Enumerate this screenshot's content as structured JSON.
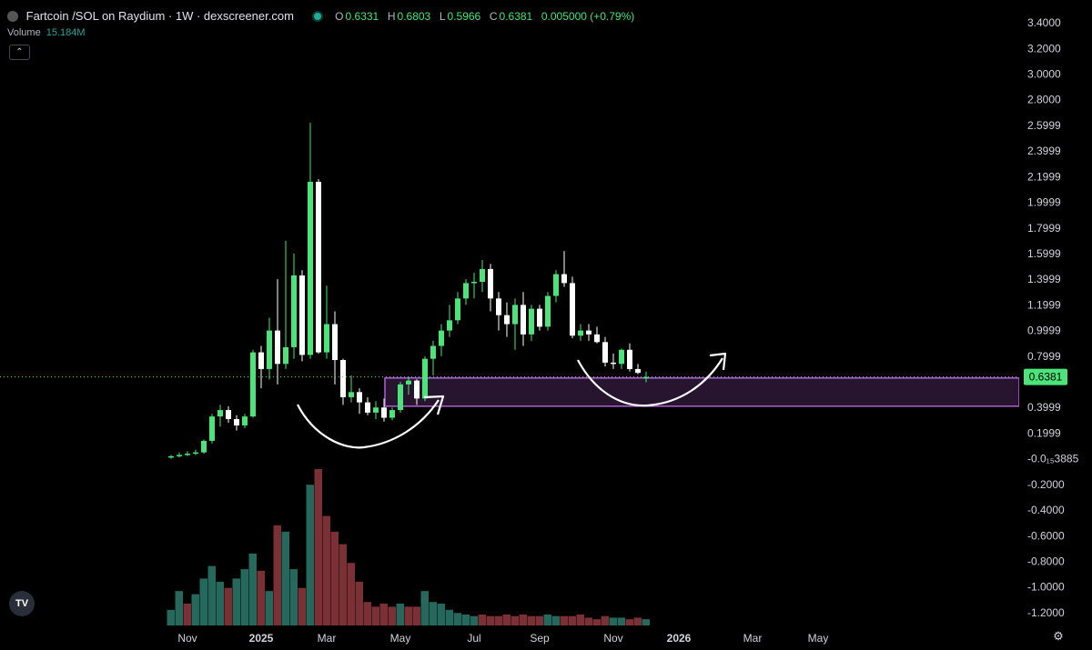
{
  "header": {
    "pair": "Fartcoin /SOL on Raydium · 1W · dexscreener.com",
    "o_label": "O",
    "o_value": "0.6331",
    "h_label": "H",
    "h_value": "0.6803",
    "l_label": "L",
    "l_value": "0.5966",
    "c_label": "C",
    "c_value": "0.6381",
    "change": "0.005000 (+0.79%)",
    "volume_label": "Volume",
    "volume_value": "15.184M"
  },
  "icons": {
    "collapse": "chevron-up-icon",
    "logo": "tradingview-logo",
    "settings": "gear-icon"
  },
  "colors": {
    "up": "#4be37a",
    "down": "#ffffff",
    "vol_up": "#26695c",
    "vol_down": "#7a3035",
    "zone": "#b15fd6",
    "current": "#4be37a"
  },
  "chart_data": {
    "type": "candlestick",
    "title": "Fartcoin /SOL on Raydium · 1W · dexscreener.com",
    "y_ticks": [
      "3.4000",
      "3.2000",
      "3.0000",
      "2.8000",
      "2.5999",
      "2.3999",
      "2.1999",
      "1.9999",
      "1.7999",
      "1.5999",
      "1.3999",
      "1.1999",
      "0.9999",
      "0.7999",
      "0.3999",
      "0.1999",
      "-0.0₁₅3885",
      "-0.2000",
      "-0.4000",
      "-0.6000",
      "-0.8000",
      "-1.0000",
      "-1.2000"
    ],
    "y_tick_values": [
      3.4,
      3.2,
      3.0,
      2.8,
      2.6,
      2.4,
      2.2,
      2.0,
      1.8,
      1.6,
      1.4,
      1.2,
      1.0,
      0.8,
      0.4,
      0.2,
      0.0,
      -0.2,
      -0.4,
      -0.6,
      -0.8,
      -1.0,
      -1.2
    ],
    "ylim": [
      -1.25,
      3.45
    ],
    "x_ticks": [
      {
        "label": "Nov",
        "bar": 2
      },
      {
        "label": "2025",
        "bar": 11
      },
      {
        "label": "Mar",
        "bar": 19
      },
      {
        "label": "May",
        "bar": 28
      },
      {
        "label": "Jul",
        "bar": 37
      },
      {
        "label": "Sep",
        "bar": 45
      },
      {
        "label": "Nov",
        "bar": 54
      },
      {
        "label": "2026",
        "bar": 62
      },
      {
        "label": "Mar",
        "bar": 71
      },
      {
        "label": "May",
        "bar": 79
      }
    ],
    "current_price": "0.6381",
    "current_value": 0.6381,
    "zone": {
      "low": 0.41,
      "high": 0.63
    },
    "candles": [
      [
        0.01,
        0.03,
        0.0,
        0.02
      ],
      [
        0.02,
        0.05,
        0.01,
        0.03
      ],
      [
        0.03,
        0.06,
        0.02,
        0.04
      ],
      [
        0.04,
        0.07,
        0.03,
        0.05
      ],
      [
        0.05,
        0.15,
        0.04,
        0.14
      ],
      [
        0.14,
        0.35,
        0.12,
        0.33
      ],
      [
        0.33,
        0.42,
        0.25,
        0.38
      ],
      [
        0.38,
        0.41,
        0.28,
        0.31
      ],
      [
        0.31,
        0.34,
        0.22,
        0.26
      ],
      [
        0.26,
        0.35,
        0.24,
        0.33
      ],
      [
        0.33,
        0.85,
        0.32,
        0.83
      ],
      [
        0.83,
        0.88,
        0.55,
        0.7
      ],
      [
        0.7,
        1.1,
        0.62,
        1.0
      ],
      [
        1.0,
        1.4,
        0.58,
        0.74
      ],
      [
        0.74,
        1.7,
        0.7,
        0.87
      ],
      [
        0.87,
        1.6,
        0.78,
        1.43
      ],
      [
        1.43,
        1.47,
        0.76,
        0.81
      ],
      [
        0.81,
        2.62,
        0.78,
        2.16
      ],
      [
        2.16,
        2.18,
        0.82,
        0.83
      ],
      [
        0.83,
        1.35,
        0.78,
        1.05
      ],
      [
        1.05,
        1.15,
        0.58,
        0.77
      ],
      [
        0.77,
        0.78,
        0.42,
        0.48
      ],
      [
        0.48,
        0.65,
        0.44,
        0.52
      ],
      [
        0.52,
        0.55,
        0.35,
        0.44
      ],
      [
        0.44,
        0.48,
        0.34,
        0.36
      ],
      [
        0.36,
        0.45,
        0.31,
        0.4
      ],
      [
        0.4,
        0.47,
        0.29,
        0.32
      ],
      [
        0.32,
        0.4,
        0.3,
        0.38
      ],
      [
        0.38,
        0.6,
        0.36,
        0.58
      ],
      [
        0.58,
        0.64,
        0.5,
        0.61
      ],
      [
        0.61,
        0.62,
        0.42,
        0.47
      ],
      [
        0.47,
        0.8,
        0.45,
        0.78
      ],
      [
        0.78,
        0.92,
        0.65,
        0.88
      ],
      [
        0.88,
        1.05,
        0.8,
        1.0
      ],
      [
        1.0,
        1.2,
        0.95,
        1.08
      ],
      [
        1.08,
        1.3,
        1.05,
        1.25
      ],
      [
        1.25,
        1.4,
        1.2,
        1.37
      ],
      [
        1.37,
        1.45,
        1.25,
        1.38
      ],
      [
        1.38,
        1.55,
        1.3,
        1.48
      ],
      [
        1.48,
        1.52,
        1.15,
        1.25
      ],
      [
        1.25,
        1.3,
        1.0,
        1.12
      ],
      [
        1.12,
        1.22,
        0.95,
        1.05
      ],
      [
        1.05,
        1.25,
        0.85,
        1.2
      ],
      [
        1.2,
        1.3,
        0.88,
        0.97
      ],
      [
        0.97,
        1.2,
        0.92,
        1.17
      ],
      [
        1.17,
        1.2,
        1.0,
        1.03
      ],
      [
        1.03,
        1.3,
        1.0,
        1.27
      ],
      [
        1.27,
        1.47,
        1.22,
        1.44
      ],
      [
        1.44,
        1.62,
        1.34,
        1.37
      ],
      [
        1.37,
        1.42,
        0.94,
        0.96
      ],
      [
        0.96,
        1.05,
        0.92,
        1.0
      ],
      [
        1.0,
        1.05,
        0.92,
        0.97
      ],
      [
        0.97,
        1.03,
        0.9,
        0.91
      ],
      [
        0.91,
        0.95,
        0.72,
        0.75
      ],
      [
        0.75,
        0.82,
        0.7,
        0.74
      ],
      [
        0.74,
        0.86,
        0.7,
        0.85
      ],
      [
        0.85,
        0.9,
        0.68,
        0.7
      ],
      [
        0.7,
        0.74,
        0.66,
        0.67
      ],
      [
        0.6331,
        0.6803,
        0.5966,
        0.6381
      ]
    ],
    "volumes": [
      [
        0.1,
        1
      ],
      [
        0.22,
        1
      ],
      [
        0.14,
        0
      ],
      [
        0.2,
        1
      ],
      [
        0.3,
        1
      ],
      [
        0.38,
        1
      ],
      [
        0.28,
        1
      ],
      [
        0.24,
        0
      ],
      [
        0.3,
        1
      ],
      [
        0.36,
        1
      ],
      [
        0.46,
        1
      ],
      [
        0.35,
        0
      ],
      [
        0.22,
        1
      ],
      [
        0.64,
        0
      ],
      [
        0.6,
        1
      ],
      [
        0.36,
        1
      ],
      [
        0.24,
        0
      ],
      [
        0.9,
        1
      ],
      [
        1.0,
        0
      ],
      [
        0.7,
        0
      ],
      [
        0.6,
        0
      ],
      [
        0.52,
        0
      ],
      [
        0.4,
        0
      ],
      [
        0.28,
        0
      ],
      [
        0.15,
        0
      ],
      [
        0.12,
        0
      ],
      [
        0.14,
        0
      ],
      [
        0.12,
        0
      ],
      [
        0.14,
        1
      ],
      [
        0.12,
        0
      ],
      [
        0.12,
        0
      ],
      [
        0.22,
        1
      ],
      [
        0.15,
        1
      ],
      [
        0.14,
        1
      ],
      [
        0.1,
        1
      ],
      [
        0.08,
        1
      ],
      [
        0.07,
        1
      ],
      [
        0.06,
        1
      ],
      [
        0.07,
        0
      ],
      [
        0.06,
        0
      ],
      [
        0.06,
        0
      ],
      [
        0.07,
        0
      ],
      [
        0.06,
        0
      ],
      [
        0.07,
        0
      ],
      [
        0.06,
        0
      ],
      [
        0.06,
        0
      ],
      [
        0.07,
        1
      ],
      [
        0.06,
        1
      ],
      [
        0.06,
        0
      ],
      [
        0.06,
        0
      ],
      [
        0.07,
        0
      ],
      [
        0.05,
        0
      ],
      [
        0.04,
        0
      ],
      [
        0.06,
        0
      ],
      [
        0.05,
        1
      ],
      [
        0.05,
        1
      ],
      [
        0.04,
        0
      ],
      [
        0.05,
        0
      ],
      [
        0.04,
        1
      ]
    ]
  }
}
